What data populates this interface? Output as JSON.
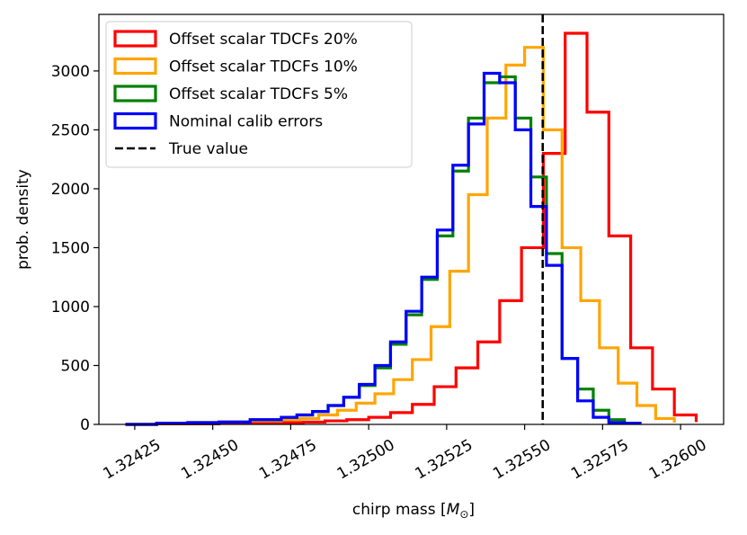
{
  "chart_data": {
    "type": "line",
    "style": "step histogram",
    "xlabel": "chirp mass [",
    "xlabel_unit": "M",
    "xlabel_unit_sub": "⊙",
    "xlabel_close": "]",
    "ylabel": "prob. density",
    "xlim": [
      1.324135,
      1.326138
    ],
    "ylim": [
      0,
      3480
    ],
    "x_ticks": [
      1.32425,
      1.3245,
      1.32475,
      1.325,
      1.32525,
      1.3255,
      1.32575,
      1.326
    ],
    "x_tick_labels": [
      "1.32425",
      "1.32450",
      "1.32475",
      "1.32500",
      "1.32525",
      "1.32550",
      "1.32575",
      "1.32600"
    ],
    "y_ticks": [
      0,
      500,
      1000,
      1500,
      2000,
      2500,
      3000
    ],
    "y_tick_labels": [
      "0",
      "500",
      "1000",
      "1500",
      "2000",
      "2500",
      "3000"
    ],
    "true_value": 1.325558,
    "legend_position": "top-left",
    "legend": [
      {
        "label": "Offset scalar TDCFs 20%",
        "color": "#ff0000",
        "style": "box"
      },
      {
        "label": "Offset scalar TDCFs 10%",
        "color": "#ffa500",
        "style": "box"
      },
      {
        "label": "Offset scalar TDCFs 5%",
        "color": "#008000",
        "style": "box"
      },
      {
        "label": "Nominal calib errors",
        "color": "#0000ff",
        "style": "box"
      },
      {
        "label": "True value",
        "color": "#000000",
        "style": "dashed"
      }
    ],
    "series": [
      {
        "name": "Offset scalar TDCFs 20%",
        "color": "#ff0000",
        "edges": [
          1.32422,
          1.32432,
          1.32442,
          1.32452,
          1.32462,
          1.32472,
          1.32479,
          1.32486,
          1.32493,
          1.325,
          1.32507,
          1.32514,
          1.32521,
          1.32528,
          1.32535,
          1.32542,
          1.32549,
          1.32556,
          1.32563,
          1.3257,
          1.32577,
          1.32584,
          1.32591,
          1.32598,
          1.32605
        ],
        "values": [
          0,
          5,
          5,
          10,
          10,
          15,
          20,
          30,
          40,
          60,
          100,
          170,
          320,
          480,
          700,
          1050,
          1500,
          2300,
          3320,
          2650,
          1600,
          650,
          300,
          80,
          20
        ]
      },
      {
        "name": "Offset scalar TDCFs 10%",
        "color": "#ffa500",
        "edges": [
          1.32422,
          1.32432,
          1.32442,
          1.32452,
          1.32462,
          1.32472,
          1.32478,
          1.32484,
          1.3249,
          1.32496,
          1.32502,
          1.32508,
          1.32514,
          1.3252,
          1.32526,
          1.32532,
          1.32538,
          1.32544,
          1.3255,
          1.32556,
          1.32562,
          1.32568,
          1.32574,
          1.3258,
          1.32586,
          1.32592,
          1.32598
        ],
        "values": [
          0,
          10,
          15,
          20,
          30,
          40,
          50,
          80,
          120,
          180,
          260,
          380,
          550,
          830,
          1300,
          1950,
          2600,
          3050,
          3200,
          2500,
          1500,
          1050,
          650,
          350,
          160,
          50,
          15
        ]
      },
      {
        "name": "Offset scalar TDCFs 5%",
        "color": "#008000",
        "edges": [
          1.32422,
          1.32432,
          1.32442,
          1.32452,
          1.32462,
          1.32472,
          1.32477,
          1.32482,
          1.32487,
          1.32492,
          1.32497,
          1.32502,
          1.32507,
          1.32512,
          1.32517,
          1.32522,
          1.32527,
          1.32532,
          1.32537,
          1.32542,
          1.32547,
          1.32552,
          1.32557,
          1.32562,
          1.32567,
          1.32572,
          1.32577,
          1.32582,
          1.32587
        ],
        "values": [
          0,
          10,
          15,
          20,
          40,
          60,
          80,
          110,
          160,
          230,
          330,
          480,
          680,
          930,
          1230,
          1600,
          2150,
          2600,
          2900,
          2950,
          2600,
          2100,
          1450,
          560,
          300,
          120,
          40,
          10,
          5
        ]
      },
      {
        "name": "Nominal calib errors",
        "color": "#0000ff",
        "edges": [
          1.32422,
          1.32432,
          1.32442,
          1.32452,
          1.32462,
          1.32472,
          1.32477,
          1.32482,
          1.32487,
          1.32492,
          1.32497,
          1.32502,
          1.32507,
          1.32512,
          1.32517,
          1.32522,
          1.32527,
          1.32532,
          1.32537,
          1.32542,
          1.32547,
          1.32552,
          1.32557,
          1.32562,
          1.32567,
          1.32572,
          1.32577,
          1.32582,
          1.32587
        ],
        "values": [
          0,
          10,
          15,
          20,
          40,
          60,
          80,
          110,
          160,
          230,
          340,
          500,
          700,
          960,
          1250,
          1650,
          2200,
          2550,
          2980,
          2900,
          2500,
          1850,
          1350,
          560,
          200,
          60,
          15,
          10,
          5
        ]
      }
    ]
  }
}
